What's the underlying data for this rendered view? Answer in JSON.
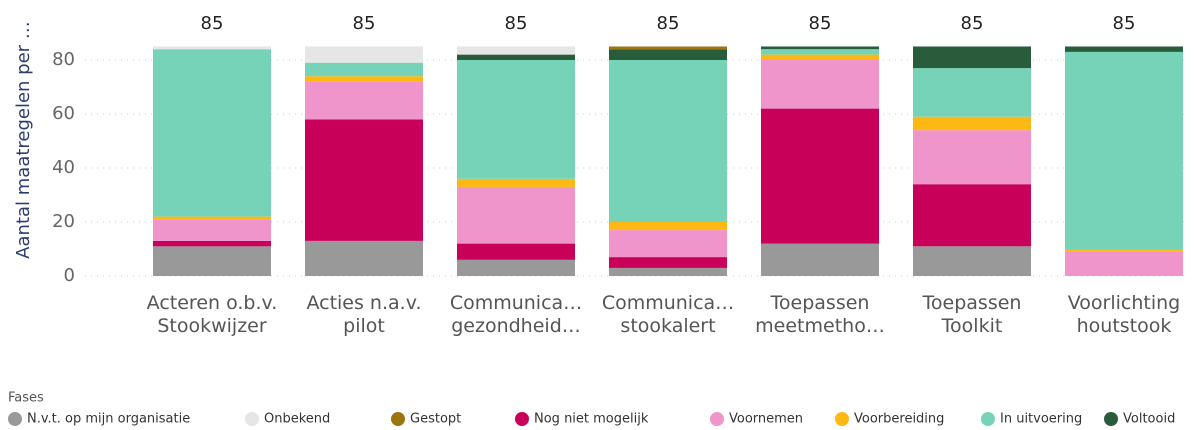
{
  "chart_data": {
    "type": "stacked_bar",
    "y_label": "Aantal maatregelen per …",
    "categories": [
      "Acteren o.b.v. Stookwijzer",
      "Acties n.a.v. pilot",
      "Communica… gezondheid…",
      "Communica… stookalert",
      "Toepassen meetmetho…",
      "Toepassen Toolkit",
      "Voorlichting houtstook"
    ],
    "totals": [
      85,
      85,
      85,
      85,
      85,
      85,
      85
    ],
    "legend_title": "Fases",
    "series": [
      {
        "name": "N.v.t. op mijn organisatie",
        "color": "#999999",
        "values": [
          11,
          13,
          6,
          3,
          12,
          11,
          0
        ]
      },
      {
        "name": "Onbekend",
        "color": "#e6e6e6",
        "values": [
          1,
          6,
          3,
          0,
          0,
          0,
          0
        ]
      },
      {
        "name": "Gestopt",
        "color": "#9c7411",
        "values": [
          0,
          0,
          0,
          1,
          0,
          0,
          0
        ]
      },
      {
        "name": "Nog niet mogelijk",
        "color": "#c8005a",
        "values": [
          2,
          45,
          6,
          4,
          50,
          23,
          0
        ]
      },
      {
        "name": "Voornemen",
        "color": "#f095cc",
        "values": [
          8,
          14,
          21,
          10,
          18,
          20,
          9
        ]
      },
      {
        "name": "Voorbereiding",
        "color": "#fdb813",
        "values": [
          1,
          2,
          3,
          3,
          2,
          5,
          1
        ]
      },
      {
        "name": "In uitvoering",
        "color": "#77d3b7",
        "values": [
          62,
          5,
          44,
          60,
          2,
          18,
          73
        ]
      },
      {
        "name": "Voltooid",
        "color": "#295c3b",
        "values": [
          0,
          0,
          2,
          4,
          1,
          8,
          2
        ]
      }
    ],
    "ylim": [
      0,
      85
    ],
    "yticks": [
      0,
      20,
      40,
      60,
      80
    ],
    "grid": true
  }
}
